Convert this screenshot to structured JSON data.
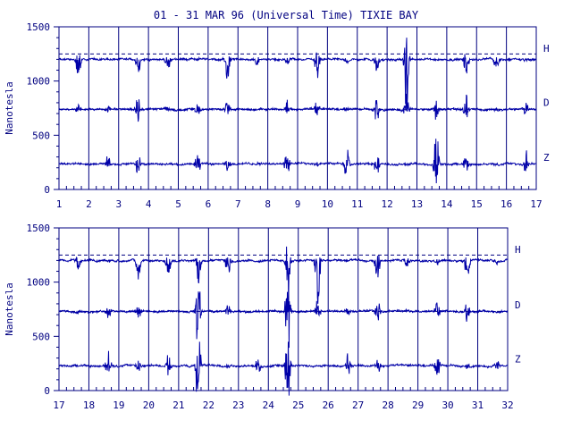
{
  "chart_data": [
    {
      "type": "line",
      "title": "01 - 31 MAR 96 (Universal Time) TIXIE BAY",
      "ylabel": "Nanotesla",
      "xlim": [
        1,
        17
      ],
      "ylim": [
        0,
        1500
      ],
      "x_ticks": [
        "1",
        "2",
        "3",
        "4",
        "5",
        "6",
        "7",
        "8",
        "9",
        "10",
        "11",
        "12",
        "13",
        "14",
        "15",
        "16",
        "17"
      ],
      "y_ticks": [
        "0",
        "500",
        "1000",
        "1500"
      ],
      "grid": "vertical",
      "series": [
        {
          "name": "H",
          "baseline": 1200,
          "reference": 1250,
          "color": "#0000a0"
        },
        {
          "name": "D",
          "baseline": 740,
          "reference": 740,
          "color": "#0000a0"
        },
        {
          "name": "Z",
          "baseline": 235,
          "color": "#0000a0"
        }
      ]
    },
    {
      "type": "line",
      "ylabel": "Nanotesla",
      "xlim": [
        17,
        32
      ],
      "ylim": [
        0,
        1500
      ],
      "x_ticks": [
        "17",
        "18",
        "19",
        "20",
        "21",
        "22",
        "23",
        "24",
        "25",
        "26",
        "27",
        "28",
        "29",
        "30",
        "31",
        "32"
      ],
      "y_ticks": [
        "0",
        "500",
        "1000",
        "1500"
      ],
      "grid": "vertical",
      "series": [
        {
          "name": "H",
          "baseline": 1200,
          "reference": 1250,
          "color": "#0000a0"
        },
        {
          "name": "D",
          "baseline": 730,
          "reference": 730,
          "color": "#0000a0"
        },
        {
          "name": "Z",
          "baseline": 230,
          "color": "#0000a0"
        }
      ]
    }
  ]
}
